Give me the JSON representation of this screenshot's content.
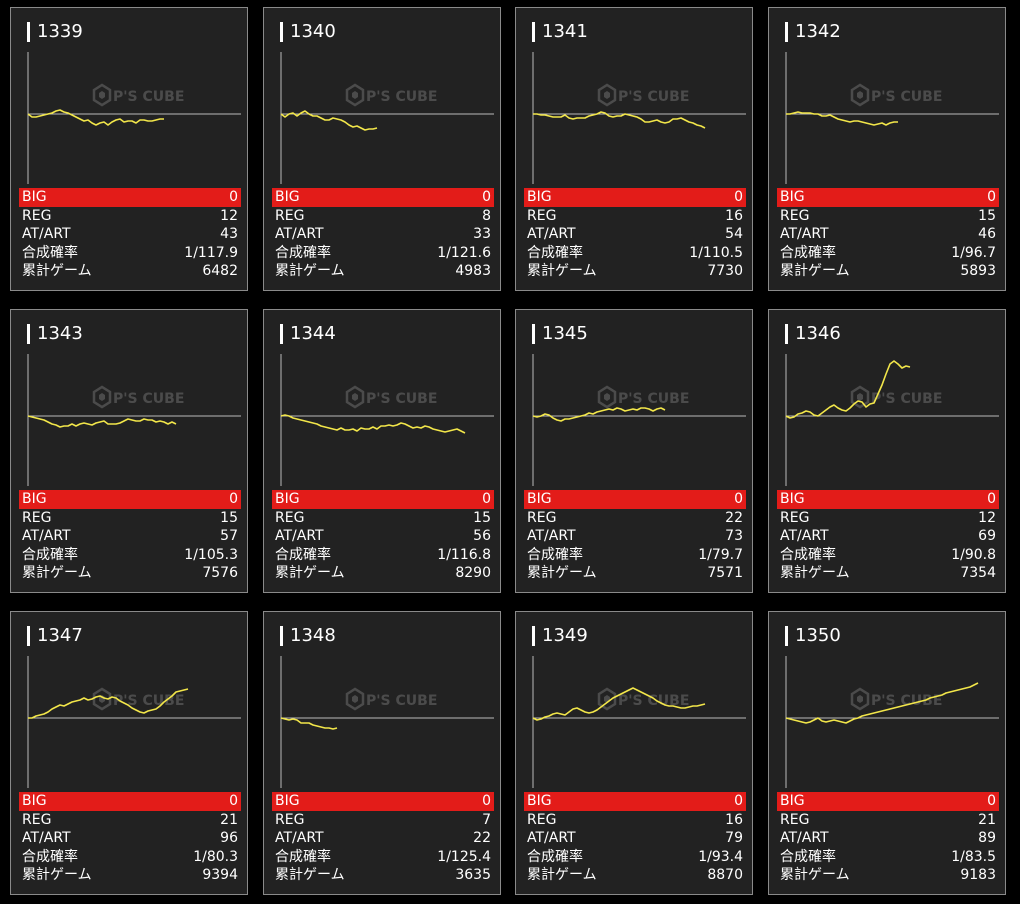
{
  "labels": {
    "big": "BIG",
    "reg": "REG",
    "atart": "AT/ART",
    "prob": "合成確率",
    "games": "累計ゲーム"
  },
  "watermark": {
    "text": "P'S CUBE"
  },
  "colors": {
    "background": "#000000",
    "card": "#222222",
    "card_border": "#8a8a8a",
    "big_bar": "#e31c19",
    "line": "#f2e64a",
    "baseline": "#bbbbbb"
  },
  "machines": [
    {
      "id": "1339",
      "big": "0",
      "reg": "12",
      "atart": "43",
      "prob": "1/117.9",
      "games": "6482"
    },
    {
      "id": "1340",
      "big": "0",
      "reg": "8",
      "atart": "33",
      "prob": "1/121.6",
      "games": "4983"
    },
    {
      "id": "1341",
      "big": "0",
      "reg": "16",
      "atart": "54",
      "prob": "1/110.5",
      "games": "7730"
    },
    {
      "id": "1342",
      "big": "0",
      "reg": "15",
      "atart": "46",
      "prob": "1/96.7",
      "games": "5893"
    },
    {
      "id": "1343",
      "big": "0",
      "reg": "15",
      "atart": "57",
      "prob": "1/105.3",
      "games": "7576"
    },
    {
      "id": "1344",
      "big": "0",
      "reg": "15",
      "atart": "56",
      "prob": "1/116.8",
      "games": "8290"
    },
    {
      "id": "1345",
      "big": "0",
      "reg": "22",
      "atart": "73",
      "prob": "1/79.7",
      "games": "7571"
    },
    {
      "id": "1346",
      "big": "0",
      "reg": "12",
      "atart": "69",
      "prob": "1/90.8",
      "games": "7354"
    },
    {
      "id": "1347",
      "big": "0",
      "reg": "21",
      "atart": "96",
      "prob": "1/80.3",
      "games": "9394"
    },
    {
      "id": "1348",
      "big": "0",
      "reg": "7",
      "atart": "22",
      "prob": "1/125.4",
      "games": "3635"
    },
    {
      "id": "1349",
      "big": "0",
      "reg": "16",
      "atart": "79",
      "prob": "1/93.4",
      "games": "8870"
    },
    {
      "id": "1350",
      "big": "0",
      "reg": "21",
      "atart": "89",
      "prob": "1/83.5",
      "games": "9183"
    }
  ],
  "chart_data": [
    {
      "type": "line",
      "id": "1339",
      "x": [
        0,
        10,
        20,
        30,
        40,
        50,
        60,
        70,
        80,
        90,
        100,
        110,
        120,
        130,
        140,
        150,
        160,
        170,
        180,
        190,
        200,
        210,
        220,
        230,
        240,
        250,
        260,
        270,
        280,
        290,
        300,
        310,
        320,
        330,
        340
      ],
      "y": [
        0,
        -3,
        -3,
        -2,
        -1,
        0,
        1,
        3,
        4,
        2,
        1,
        -1,
        -3,
        -5,
        -7,
        -6,
        -9,
        -11,
        -9,
        -8,
        -11,
        -8,
        -6,
        -5,
        -8,
        -7,
        -7,
        -9,
        -6,
        -6,
        -7,
        -7,
        -6,
        -5,
        -5
      ]
    },
    {
      "type": "line",
      "id": "1340",
      "x": [
        0,
        10,
        20,
        30,
        40,
        50,
        60,
        70,
        80,
        90,
        100,
        110,
        120,
        130,
        140,
        150,
        160,
        170,
        180,
        190,
        200,
        210,
        220,
        230,
        240
      ],
      "y": [
        0,
        -3,
        0,
        1,
        -2,
        1,
        3,
        0,
        -2,
        -2,
        -4,
        -6,
        -6,
        -4,
        -5,
        -6,
        -8,
        -11,
        -13,
        -12,
        -14,
        -16,
        -15,
        -15,
        -14
      ]
    },
    {
      "type": "line",
      "id": "1341",
      "x": [
        0,
        10,
        20,
        30,
        40,
        50,
        60,
        70,
        80,
        90,
        100,
        110,
        120,
        130,
        140,
        150,
        160,
        170,
        180,
        190,
        200,
        210,
        220,
        230,
        240,
        250,
        260,
        270,
        280,
        290,
        300,
        310,
        320,
        330,
        340,
        350,
        360,
        370,
        380,
        390,
        400,
        410,
        420,
        430
      ],
      "y": [
        0,
        0,
        -1,
        -1,
        -2,
        -3,
        -3,
        -3,
        -1,
        -4,
        -5,
        -4,
        -4,
        -4,
        -2,
        -1,
        0,
        2,
        1,
        -2,
        -3,
        -2,
        -2,
        0,
        -1,
        -2,
        -3,
        -5,
        -8,
        -8,
        -7,
        -6,
        -8,
        -9,
        -8,
        -5,
        -5,
        -4,
        -6,
        -8,
        -9,
        -11,
        -12,
        -14
      ]
    },
    {
      "type": "line",
      "id": "1342",
      "x": [
        0,
        10,
        20,
        30,
        40,
        50,
        60,
        70,
        80,
        90,
        100,
        110,
        120,
        130,
        140,
        150,
        160,
        170,
        180,
        190,
        200,
        210,
        220,
        230,
        240,
        250,
        260,
        270,
        280
      ],
      "y": [
        0,
        0,
        1,
        2,
        1,
        1,
        1,
        0,
        0,
        -2,
        -2,
        -1,
        -3,
        -5,
        -6,
        -7,
        -8,
        -7,
        -7,
        -8,
        -9,
        -10,
        -11,
        -10,
        -9,
        -11,
        -9,
        -8,
        -8
      ]
    },
    {
      "type": "line",
      "id": "1343",
      "x": [
        0,
        10,
        20,
        30,
        40,
        50,
        60,
        70,
        80,
        90,
        100,
        110,
        120,
        130,
        140,
        150,
        160,
        170,
        180,
        190,
        200,
        210,
        220,
        230,
        240,
        250,
        260,
        270,
        280,
        290,
        300,
        310,
        320,
        330,
        340,
        350,
        360,
        370
      ],
      "y": [
        0,
        -1,
        -2,
        -3,
        -4,
        -6,
        -8,
        -9,
        -11,
        -10,
        -10,
        -8,
        -10,
        -8,
        -7,
        -8,
        -9,
        -7,
        -6,
        -5,
        -8,
        -8,
        -8,
        -7,
        -5,
        -3,
        -4,
        -5,
        -5,
        -3,
        -4,
        -4,
        -6,
        -5,
        -6,
        -8,
        -6,
        -8
      ]
    },
    {
      "type": "line",
      "id": "1344",
      "x": [
        0,
        10,
        20,
        30,
        40,
        50,
        60,
        70,
        80,
        90,
        100,
        110,
        120,
        130,
        140,
        150,
        160,
        170,
        180,
        190,
        200,
        210,
        220,
        230,
        240,
        250,
        260,
        270,
        280,
        290,
        300,
        310,
        320,
        330,
        340,
        350,
        360,
        370,
        380,
        390,
        400,
        410,
        420,
        430,
        440,
        450,
        460
      ],
      "y": [
        0,
        1,
        0,
        -2,
        -3,
        -4,
        -5,
        -6,
        -7,
        -8,
        -10,
        -11,
        -12,
        -13,
        -14,
        -12,
        -14,
        -14,
        -13,
        -15,
        -12,
        -13,
        -13,
        -11,
        -13,
        -10,
        -10,
        -9,
        -10,
        -9,
        -7,
        -8,
        -10,
        -12,
        -11,
        -12,
        -10,
        -11,
        -13,
        -14,
        -15,
        -16,
        -15,
        -14,
        -13,
        -15,
        -17
      ]
    },
    {
      "type": "line",
      "id": "1345",
      "x": [
        0,
        10,
        20,
        30,
        40,
        50,
        60,
        70,
        80,
        90,
        100,
        110,
        120,
        130,
        140,
        150,
        160,
        170,
        180,
        190,
        200,
        210,
        220,
        230,
        240,
        250,
        260,
        270,
        280,
        290,
        300,
        310,
        320,
        330
      ],
      "y": [
        0,
        -1,
        0,
        2,
        1,
        -2,
        -4,
        -5,
        -3,
        -3,
        -2,
        -1,
        0,
        1,
        3,
        2,
        4,
        5,
        6,
        7,
        6,
        8,
        7,
        5,
        6,
        7,
        6,
        8,
        8,
        7,
        5,
        7,
        8,
        6
      ]
    },
    {
      "type": "line",
      "id": "1346",
      "x": [
        0,
        10,
        20,
        30,
        40,
        50,
        60,
        70,
        80,
        90,
        100,
        110,
        120,
        130,
        140,
        150,
        160,
        170,
        180,
        190,
        200,
        210,
        220,
        230,
        240,
        250,
        260,
        270,
        280,
        290,
        300,
        310
      ],
      "y": [
        0,
        -2,
        -1,
        2,
        3,
        5,
        4,
        1,
        0,
        3,
        6,
        9,
        11,
        8,
        6,
        5,
        8,
        12,
        15,
        14,
        9,
        12,
        13,
        22,
        31,
        42,
        52,
        55,
        52,
        48,
        50,
        49
      ]
    },
    {
      "type": "line",
      "id": "1347",
      "x": [
        0,
        10,
        20,
        30,
        40,
        50,
        60,
        70,
        80,
        90,
        100,
        110,
        120,
        130,
        140,
        150,
        160,
        170,
        180,
        190,
        200,
        210,
        220,
        230,
        240,
        250,
        260,
        270,
        280,
        290,
        300,
        310,
        320,
        330,
        340,
        350,
        360,
        370,
        380,
        390,
        400
      ],
      "y": [
        0,
        0,
        2,
        3,
        4,
        6,
        9,
        11,
        13,
        12,
        14,
        16,
        17,
        18,
        20,
        18,
        19,
        21,
        22,
        20,
        19,
        21,
        20,
        17,
        15,
        13,
        10,
        8,
        6,
        5,
        7,
        8,
        9,
        12,
        16,
        19,
        22,
        26,
        27,
        28,
        29
      ]
    },
    {
      "type": "line",
      "id": "1348",
      "x": [
        0,
        10,
        20,
        30,
        40,
        50,
        60,
        70,
        80,
        90,
        100,
        110,
        120,
        130,
        140
      ],
      "y": [
        0,
        -1,
        -2,
        -1,
        -2,
        -5,
        -5,
        -5,
        -7,
        -8,
        -9,
        -10,
        -10,
        -11,
        -10
      ]
    },
    {
      "type": "line",
      "id": "1349",
      "x": [
        0,
        10,
        20,
        30,
        40,
        50,
        60,
        70,
        80,
        90,
        100,
        110,
        120,
        130,
        140,
        150,
        160,
        170,
        180,
        190,
        200,
        210,
        220,
        230,
        240,
        250,
        260,
        270,
        280,
        290,
        300,
        310,
        320,
        330,
        340,
        350,
        360,
        370,
        380,
        390,
        400,
        410,
        420,
        430
      ],
      "y": [
        0,
        -2,
        -1,
        1,
        2,
        4,
        5,
        4,
        3,
        6,
        9,
        10,
        8,
        6,
        5,
        6,
        8,
        11,
        14,
        17,
        20,
        22,
        24,
        26,
        28,
        30,
        28,
        26,
        24,
        22,
        20,
        17,
        15,
        13,
        12,
        12,
        11,
        10,
        10,
        11,
        12,
        12,
        13,
        14
      ]
    },
    {
      "type": "line",
      "id": "1350",
      "x": [
        0,
        10,
        20,
        30,
        40,
        50,
        60,
        70,
        80,
        90,
        100,
        110,
        120,
        130,
        140,
        150,
        160,
        170,
        180,
        190,
        200,
        210,
        220,
        230,
        240,
        250,
        260,
        270,
        280,
        290,
        300,
        310,
        320,
        330,
        340,
        350,
        360,
        370,
        380,
        390,
        400,
        410,
        420,
        430,
        440,
        450,
        460,
        470,
        480
      ],
      "y": [
        0,
        -1,
        -2,
        -3,
        -4,
        -5,
        -4,
        -2,
        0,
        -3,
        -4,
        -3,
        -2,
        -3,
        -4,
        -5,
        -3,
        -1,
        0,
        2,
        3,
        4,
        5,
        6,
        7,
        8,
        9,
        10,
        11,
        12,
        13,
        14,
        15,
        16,
        17,
        18,
        20,
        21,
        22,
        23,
        25,
        26,
        27,
        28,
        29,
        30,
        31,
        33,
        35
      ]
    }
  ]
}
